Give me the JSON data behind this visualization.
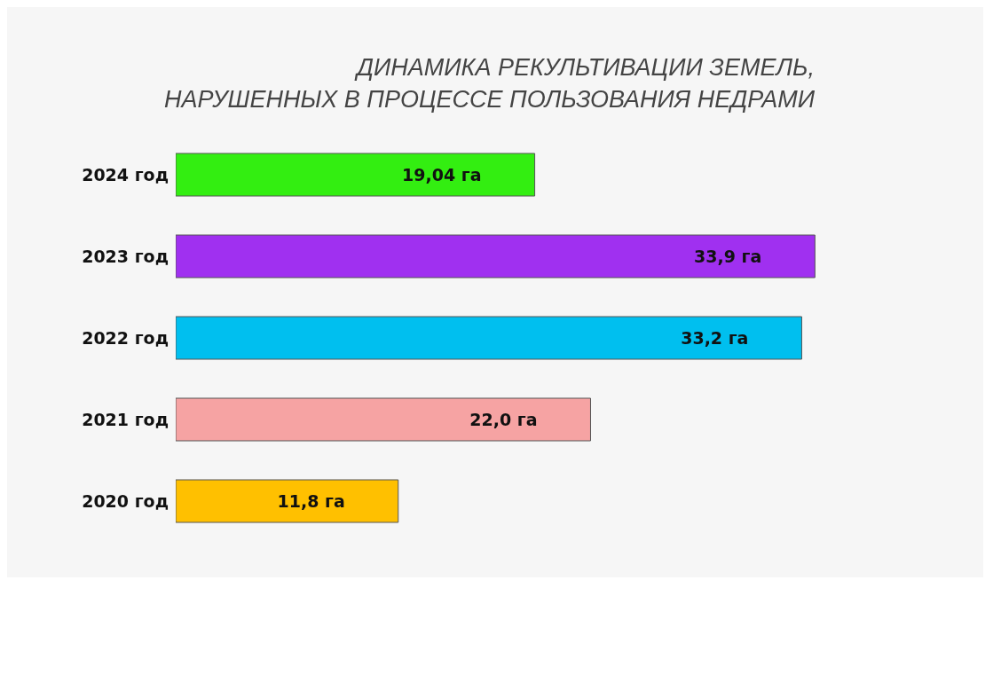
{
  "chart_data": {
    "type": "bar",
    "orientation": "horizontal",
    "title": "ДИНАМИКА РЕКУЛЬТИВАЦИИ ЗЕМЕЛЬ,\nНАРУШЕННЫХ В ПРОЦЕССЕ ПОЛЬЗОВАНИЯ НЕДРАМИ",
    "categories": [
      "2024 год",
      "2023 год",
      "2022 год",
      "2021 год",
      "2020 год"
    ],
    "values": [
      19.04,
      33.9,
      33.2,
      22.0,
      11.8
    ],
    "value_labels": [
      "19,04 га",
      "33,9 га",
      "33,2 га",
      "22,0 га",
      "11,8 га"
    ],
    "colors": [
      "#33ee11",
      "#a030f0",
      "#00bfef",
      "#f6a3a3",
      "#ffc000"
    ],
    "tick_labels": "y",
    "legend": false
  }
}
